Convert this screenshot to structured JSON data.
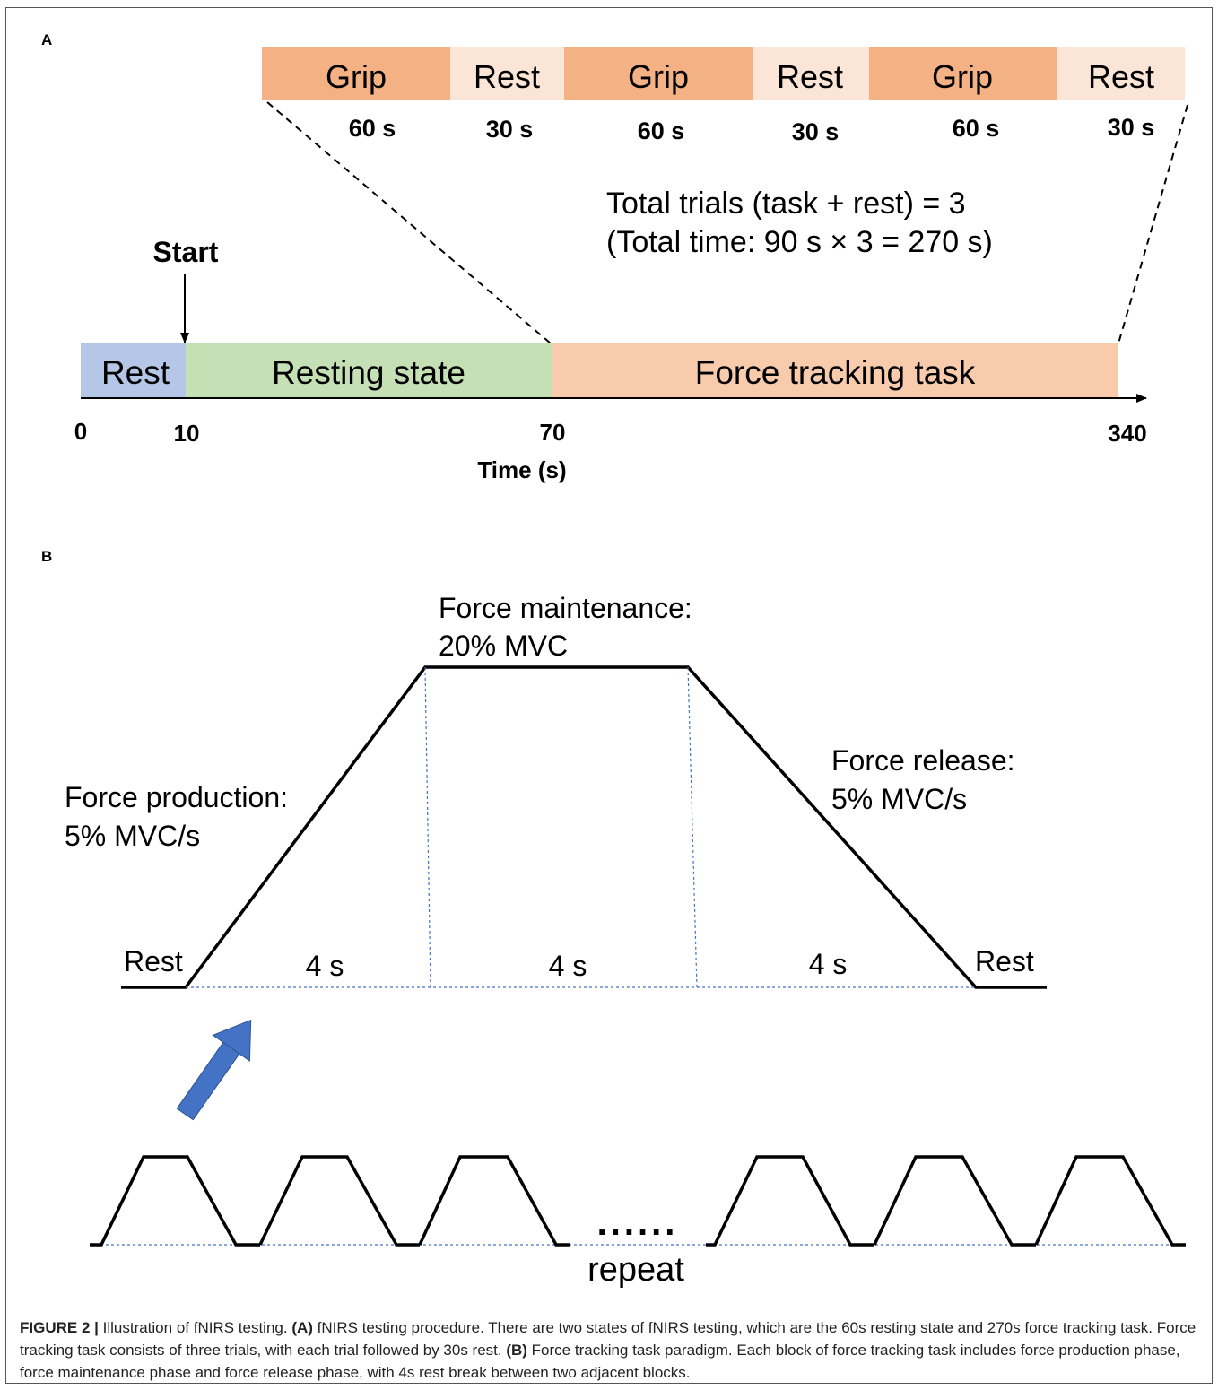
{
  "panel_a": {
    "label": "A",
    "blocks": [
      {
        "name": "Grip",
        "duration": "60 s",
        "color": "#f4b183"
      },
      {
        "name": "Rest",
        "duration": "30 s",
        "color": "#fbe5d6"
      },
      {
        "name": "Grip",
        "duration": "60 s",
        "color": "#f4b183"
      },
      {
        "name": "Rest",
        "duration": "30 s",
        "color": "#fbe5d6"
      },
      {
        "name": "Grip",
        "duration": "60 s",
        "color": "#f4b183"
      },
      {
        "name": "Rest",
        "duration": "30 s",
        "color": "#fbe5d6"
      }
    ],
    "trials_text": "Total trials (task + rest) = 3",
    "time_text": "(Total time: 90 s × 3 = 270 s)",
    "start_label": "Start",
    "segments": [
      {
        "name": "Rest",
        "color": "#b4c7e7"
      },
      {
        "name": "Resting state",
        "color": "#c5e0b4"
      },
      {
        "name": "Force tracking task",
        "color": "#f8cbad"
      }
    ],
    "ticks": [
      "0",
      "10",
      "70",
      "340"
    ],
    "axis_label": "Time (s)"
  },
  "panel_b": {
    "label": "B",
    "maintenance_title": "Force maintenance:",
    "maintenance_value": "20% MVC",
    "production_title": "Force production:",
    "production_value": "5% MVC/s",
    "release_title": "Force release:",
    "release_value": "5% MVC/s",
    "rest_left": "Rest",
    "rest_right": "Rest",
    "phase_durations": [
      "4 s",
      "4 s",
      "4 s"
    ],
    "ellipsis": "......",
    "repeat_label": "repeat",
    "arrow_color": "#4472c4"
  },
  "caption": {
    "figure_label": "FIGURE 2 |",
    "text_1": " Illustration of fNIRS testing. ",
    "a_label": "(A)",
    "text_2": " fNIRS testing procedure. There are two states of fNIRS testing, which are the 60s resting state and 270s force tracking task. Force tracking task consists of three trials, with each trial followed by 30s rest. ",
    "b_label": "(B)",
    "text_3": " Force tracking task paradigm. Each block of force tracking task includes force production phase, force maintenance phase and force release phase, with 4s rest break between two adjacent blocks."
  }
}
